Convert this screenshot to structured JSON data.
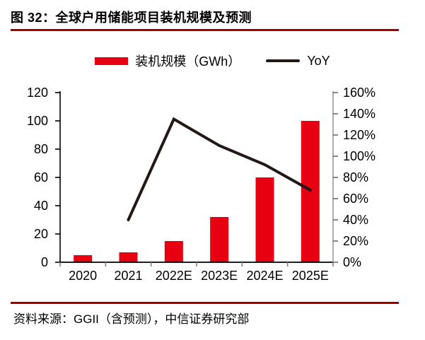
{
  "figure": {
    "title": "图 32：全球户用储能项目装机规模及预测",
    "source": "资料来源：GGII（含预测），中信证券研究部"
  },
  "legend": {
    "bar_label": "装机规模（GWh）",
    "line_label": "YoY"
  },
  "chart_data": {
    "type": "bar",
    "subtype": "bar-line-combo",
    "title": "全球户用储能项目装机规模及预测",
    "categories": [
      "2020",
      "2021",
      "2022E",
      "2023E",
      "2024E",
      "2025E"
    ],
    "series": [
      {
        "name": "装机规模（GWh）",
        "type": "bar",
        "axis": "left",
        "color": "#e60012",
        "values": [
          5,
          7,
          15,
          32,
          60,
          100
        ]
      },
      {
        "name": "YoY",
        "type": "line",
        "axis": "right",
        "color": "#231815",
        "unit": "%",
        "values": [
          null,
          40,
          135,
          110,
          92,
          68
        ]
      }
    ],
    "left_axis": {
      "min": 0,
      "max": 120,
      "step": 20,
      "tick_labels": [
        "0",
        "20",
        "40",
        "60",
        "80",
        "100",
        "120"
      ]
    },
    "right_axis": {
      "min": 0,
      "max": 160,
      "step": 20,
      "tick_labels": [
        "0%",
        "20%",
        "40%",
        "60%",
        "80%",
        "100%",
        "120%",
        "140%",
        "160%"
      ]
    },
    "grid": false,
    "legend_position": "top"
  },
  "colors": {
    "bar": "#e60012",
    "line": "#231815",
    "rule": "#a40000",
    "axis": "#000000",
    "right_axis_line": "#8c8c8c",
    "x_tick": "#808080",
    "text": "#000000"
  }
}
